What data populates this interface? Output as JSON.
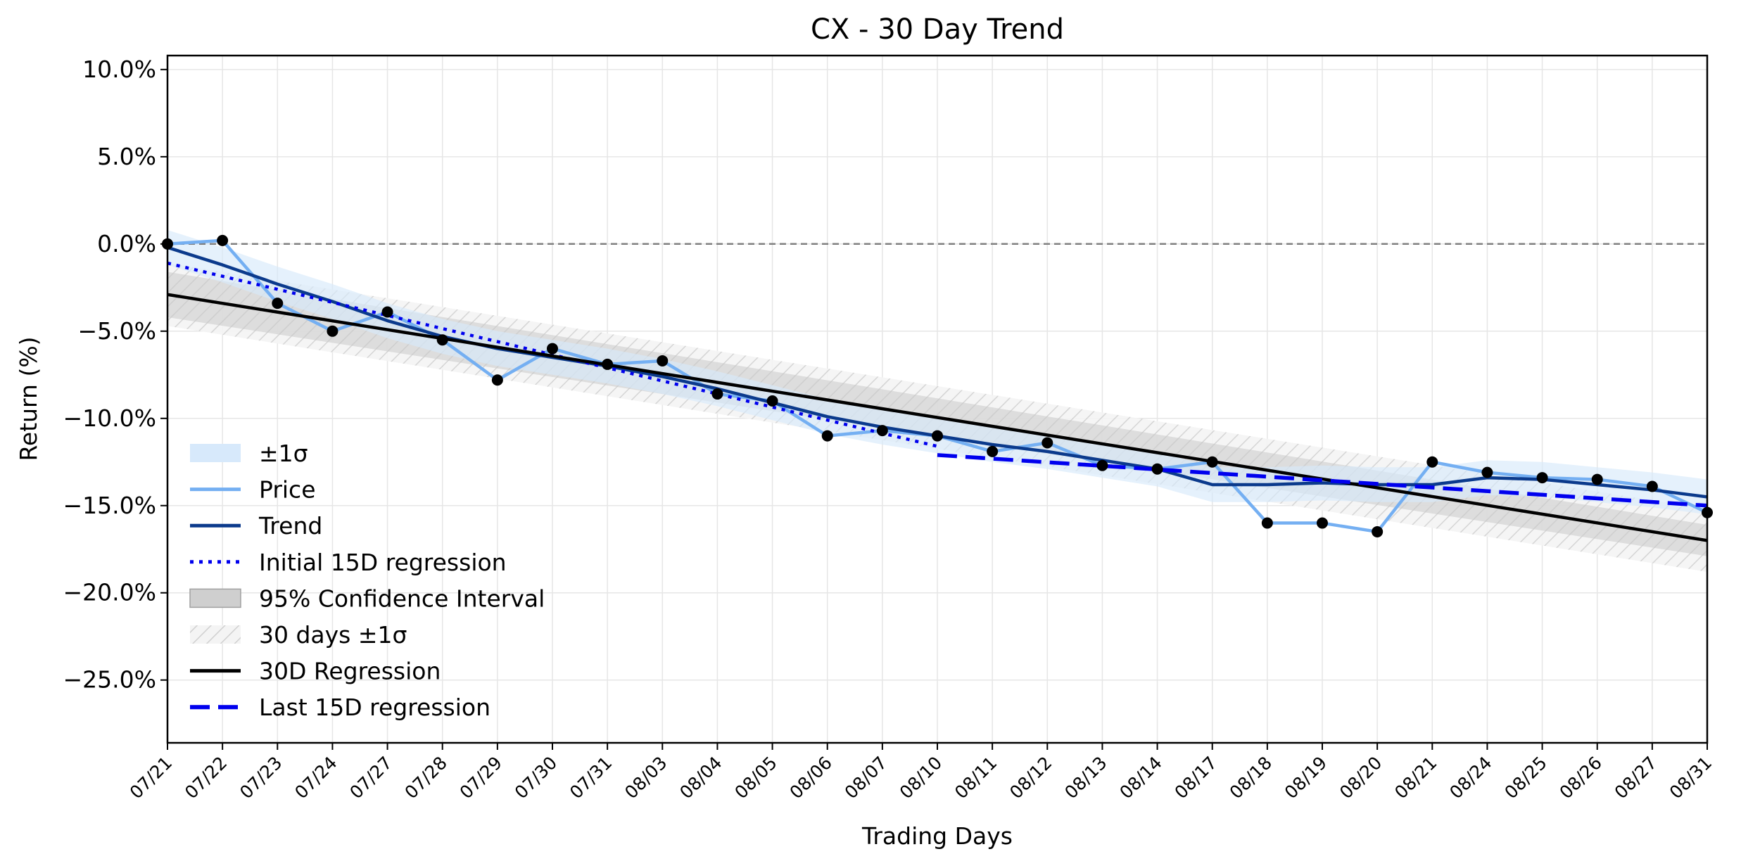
{
  "chart_data": {
    "type": "line",
    "title": "CX - 30 Day Trend",
    "xlabel": "Trading Days",
    "ylabel": "Return (%)",
    "ylim": [
      -28.6,
      10.8
    ],
    "yticks": [
      10,
      5,
      0,
      -5,
      -10,
      -15,
      -20,
      -25
    ],
    "ytick_labels": [
      "10.0%",
      "5.0%",
      "0.0%",
      "−5.0%",
      "−10.0%",
      "−15.0%",
      "−20.0%",
      "−25.0%"
    ],
    "grid": true,
    "legend_position": "lower-left",
    "zero_line": {
      "value": 0,
      "color": "#808080",
      "style": "dashed"
    },
    "categories": [
      "07/21",
      "07/22",
      "07/23",
      "07/24",
      "07/27",
      "07/28",
      "07/29",
      "07/30",
      "07/31",
      "08/03",
      "08/04",
      "08/05",
      "08/06",
      "08/07",
      "08/10",
      "08/11",
      "08/12",
      "08/13",
      "08/14",
      "08/17",
      "08/18",
      "08/19",
      "08/20",
      "08/21",
      "08/24",
      "08/25",
      "08/26",
      "08/27",
      "08/31"
    ],
    "series": [
      {
        "name": "Price",
        "color": "#74aff2",
        "style": "solid",
        "marker": "dot",
        "marker_color": "#000000",
        "values": [
          0.0,
          0.2,
          -3.4,
          -5.0,
          -3.9,
          -5.5,
          -7.8,
          -6.0,
          -6.9,
          -6.7,
          -8.6,
          -9.0,
          -11.0,
          -10.7,
          -11.0,
          -11.9,
          -11.4,
          -12.7,
          -12.9,
          -12.5,
          -16.0,
          -16.0,
          -16.5,
          -12.5,
          -13.1,
          -13.4,
          -13.5,
          -13.9,
          -15.4
        ]
      },
      {
        "name": "Trend",
        "color": "#0b3a8c",
        "style": "solid",
        "values": [
          -0.2,
          -1.2,
          -2.3,
          -3.3,
          -4.4,
          -5.3,
          -6.0,
          -6.5,
          -7.0,
          -7.6,
          -8.3,
          -9.1,
          -9.9,
          -10.5,
          -11.0,
          -11.5,
          -11.9,
          -12.4,
          -12.9,
          -13.8,
          -13.8,
          -13.7,
          -13.8,
          -13.8,
          -13.4,
          -13.5,
          -13.8,
          -14.1,
          -14.5
        ]
      },
      {
        "name": "Initial 15D regression",
        "color": "#0000ee",
        "style": "dotted",
        "x_range": [
          "07/21",
          "08/10"
        ],
        "values_at_ends": [
          -1.1,
          -11.6
        ]
      },
      {
        "name": "30D Regression",
        "color": "#000000",
        "style": "solid",
        "x_range": [
          "07/21",
          "08/31"
        ],
        "values_at_ends": [
          -2.9,
          -17.0
        ]
      },
      {
        "name": "Last 15D regression",
        "color": "#0000ee",
        "style": "dashed",
        "x_range": [
          "08/10",
          "08/31"
        ],
        "values_at_ends": [
          -12.1,
          -15.0
        ]
      }
    ],
    "bands": [
      {
        "name": "±1σ",
        "around": "Trend",
        "half_width": 1.0,
        "color": "#d7e9fb"
      },
      {
        "name": "95% Confidence Interval",
        "around": "30D Regression",
        "half_width_ends": [
          1.3,
          0.9
        ],
        "color": "#c8c8c8"
      },
      {
        "name": "30 days ±1σ",
        "around": "30D Regression",
        "half_width": 1.8,
        "color": "#d8d8d8",
        "pattern": "hatch"
      }
    ],
    "legend": [
      "±1σ",
      "Price",
      "Trend",
      "Initial 15D regression",
      "95% Confidence Interval",
      "30 days ±1σ",
      "30D Regression",
      "Last 15D regression"
    ]
  }
}
